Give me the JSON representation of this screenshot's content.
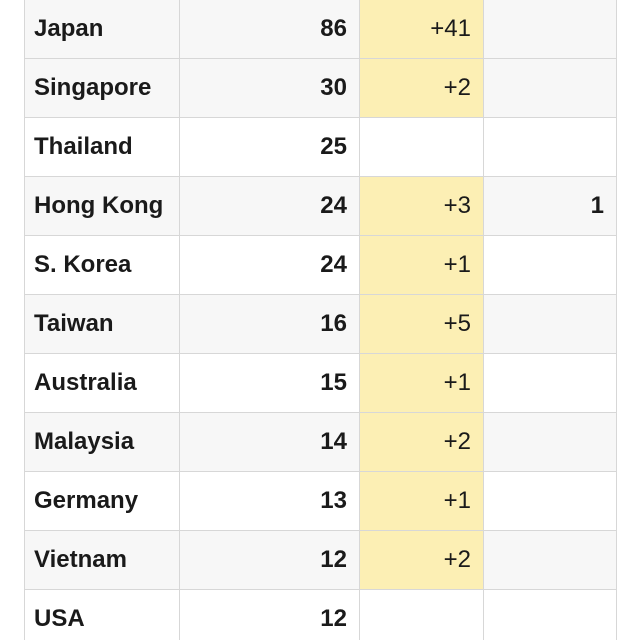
{
  "table": {
    "rows": [
      {
        "country": "Japan",
        "total": "86",
        "new": "+41",
        "deaths": ""
      },
      {
        "country": "Singapore",
        "total": "30",
        "new": "+2",
        "deaths": ""
      },
      {
        "country": "Thailand",
        "total": "25",
        "new": "",
        "deaths": ""
      },
      {
        "country": "Hong Kong",
        "total": "24",
        "new": "+3",
        "deaths": "1"
      },
      {
        "country": "S. Korea",
        "total": "24",
        "new": "+1",
        "deaths": ""
      },
      {
        "country": "Taiwan",
        "total": "16",
        "new": "+5",
        "deaths": ""
      },
      {
        "country": "Australia",
        "total": "15",
        "new": "+1",
        "deaths": ""
      },
      {
        "country": "Malaysia",
        "total": "14",
        "new": "+2",
        "deaths": ""
      },
      {
        "country": "Germany",
        "total": "13",
        "new": "+1",
        "deaths": ""
      },
      {
        "country": "Vietnam",
        "total": "12",
        "new": "+2",
        "deaths": ""
      },
      {
        "country": "USA",
        "total": "12",
        "new": "",
        "deaths": ""
      }
    ],
    "colors": {
      "new_highlight": "#fcefb4",
      "row_shade": "#f7f7f7",
      "border": "#d7d7d7",
      "text": "#1a1a1a"
    }
  }
}
